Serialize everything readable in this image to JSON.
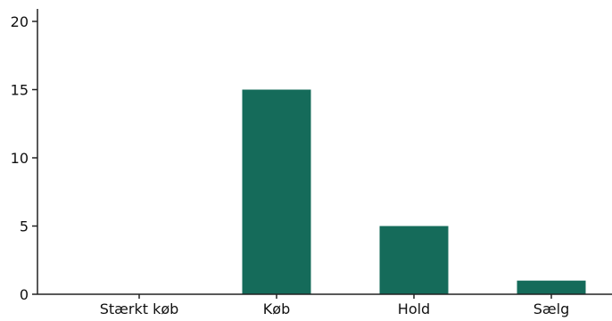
{
  "chart_data": {
    "type": "bar",
    "categories": [
      "Stærkt køb",
      "Køb",
      "Hold",
      "Sælg"
    ],
    "values": [
      0,
      15,
      5,
      1
    ],
    "ylim": [
      0,
      20
    ],
    "yticks": [
      0,
      5,
      10,
      15,
      20
    ],
    "title": "",
    "xlabel": "",
    "ylabel": "",
    "grid": false,
    "legend": "none",
    "bar_color": "#156b5a",
    "axis_color": "#222222"
  }
}
